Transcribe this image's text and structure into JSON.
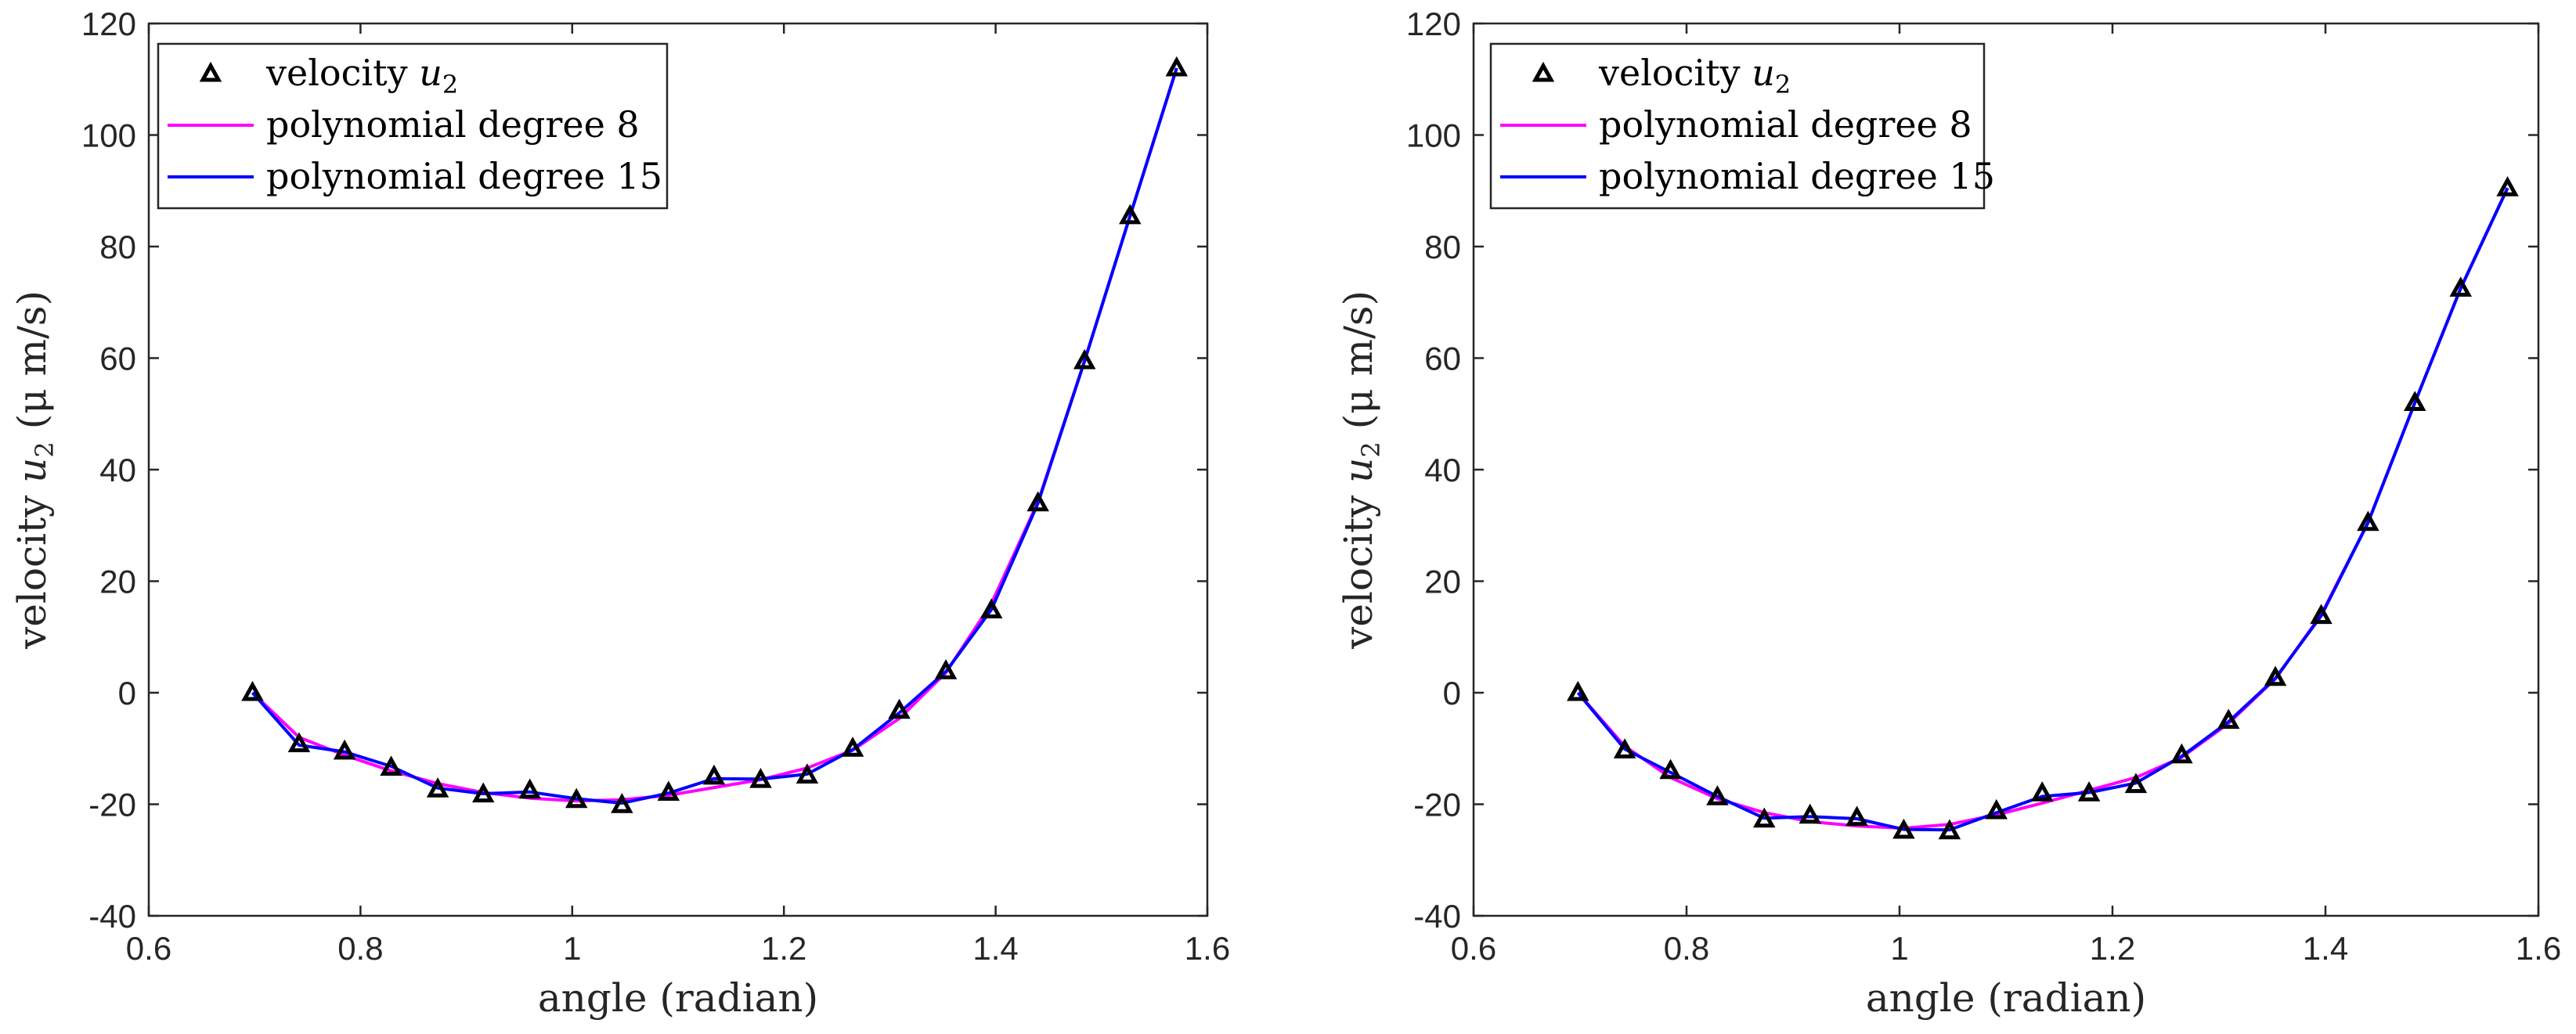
{
  "colors": {
    "markers": "#000000",
    "poly8": "#ff00ff",
    "poly15": "#0000ff",
    "axis": "#262626"
  },
  "chart_data": [
    {
      "type": "line",
      "title": "",
      "xlabel": "angle (radian)",
      "ylabel": {
        "prefix": "velocity ",
        "var": "u",
        "sub": "2",
        "suffix": " (μ m/s)"
      },
      "xlim": [
        0.6,
        1.6
      ],
      "ylim": [
        -40,
        120
      ],
      "xticks": [
        0.6,
        0.8,
        1.0,
        1.2,
        1.4,
        1.6
      ],
      "xtick_labels": [
        "0.6",
        "0.8",
        "1",
        "1.2",
        "1.4",
        "1.6"
      ],
      "yticks": [
        -40,
        -20,
        0,
        20,
        40,
        60,
        80,
        100,
        120
      ],
      "ytick_labels": [
        "-40",
        "-20",
        "0",
        "20",
        "40",
        "60",
        "80",
        "100",
        "120"
      ],
      "legend": {
        "position": "top-left",
        "entries": [
          {
            "key": "markers",
            "prefix": "velocity ",
            "var": "u",
            "sub": "2"
          },
          {
            "key": "poly8",
            "prefix": "polynomial degree 8",
            "var": "",
            "sub": ""
          },
          {
            "key": "poly15",
            "prefix": "polynomial degree 15",
            "var": "",
            "sub": ""
          }
        ]
      },
      "x": [
        0.698,
        0.742,
        0.785,
        0.829,
        0.873,
        0.916,
        0.96,
        1.004,
        1.047,
        1.091,
        1.134,
        1.178,
        1.222,
        1.265,
        1.309,
        1.353,
        1.396,
        1.44,
        1.484,
        1.527,
        1.571
      ],
      "series": [
        {
          "name": "velocity u2",
          "style": "markers",
          "values": [
            0,
            -9.2,
            -10.5,
            -13.4,
            -17.3,
            -18.2,
            -17.5,
            -19.2,
            -20.1,
            -17.9,
            -15.0,
            -15.6,
            -14.8,
            -10.0,
            -3.2,
            3.9,
            14.8,
            34.0,
            59.5,
            85.5,
            112.0
          ]
        },
        {
          "name": "polynomial degree 8",
          "style": "poly8",
          "values": [
            0,
            -8.0,
            -11.2,
            -14.0,
            -16.3,
            -17.9,
            -18.9,
            -19.4,
            -19.2,
            -18.4,
            -17.0,
            -15.6,
            -13.5,
            -10.3,
            -4.6,
            3.6,
            16.0,
            34.2,
            59.5,
            85.5,
            112.0
          ]
        },
        {
          "name": "polynomial degree 15",
          "style": "poly15",
          "values": [
            0,
            -9.4,
            -10.6,
            -13.2,
            -17.1,
            -18.1,
            -17.8,
            -19.0,
            -19.8,
            -18.0,
            -15.4,
            -15.5,
            -14.6,
            -10.2,
            -3.6,
            3.8,
            14.9,
            34.0,
            59.5,
            85.5,
            112.0
          ]
        }
      ]
    },
    {
      "type": "line",
      "title": "",
      "xlabel": "angle (radian)",
      "ylabel": {
        "prefix": "velocity ",
        "var": "u",
        "sub": "2",
        "suffix": " (μ m/s)"
      },
      "xlim": [
        0.6,
        1.6
      ],
      "ylim": [
        -40,
        120
      ],
      "xticks": [
        0.6,
        0.8,
        1.0,
        1.2,
        1.4,
        1.6
      ],
      "xtick_labels": [
        "0.6",
        "0.8",
        "1",
        "1.2",
        "1.4",
        "1.6"
      ],
      "yticks": [
        -40,
        -20,
        0,
        20,
        40,
        60,
        80,
        100,
        120
      ],
      "ytick_labels": [
        "-40",
        "-20",
        "0",
        "20",
        "40",
        "60",
        "80",
        "100",
        "120"
      ],
      "legend": {
        "position": "top-left",
        "entries": [
          {
            "key": "markers",
            "prefix": "velocity ",
            "var": "u",
            "sub": "2"
          },
          {
            "key": "poly8",
            "prefix": "polynomial degree 8",
            "var": "",
            "sub": ""
          },
          {
            "key": "poly15",
            "prefix": "polynomial degree 15",
            "var": "",
            "sub": ""
          }
        ]
      },
      "x": [
        0.698,
        0.742,
        0.785,
        0.829,
        0.873,
        0.916,
        0.96,
        1.004,
        1.047,
        1.091,
        1.134,
        1.178,
        1.222,
        1.265,
        1.309,
        1.353,
        1.396,
        1.44,
        1.484,
        1.527,
        1.571
      ],
      "series": [
        {
          "name": "velocity u2",
          "style": "markers",
          "values": [
            0,
            -10.3,
            -14.0,
            -18.7,
            -22.7,
            -22.0,
            -22.4,
            -24.7,
            -24.8,
            -21.2,
            -18.0,
            -18.0,
            -16.5,
            -11.2,
            -5.0,
            2.7,
            13.8,
            30.5,
            52.0,
            72.5,
            90.5
          ]
        },
        {
          "name": "polynomial degree 8",
          "style": "poly8",
          "values": [
            0,
            -9.6,
            -15.2,
            -19.0,
            -21.5,
            -23.1,
            -23.9,
            -24.3,
            -23.6,
            -21.9,
            -19.8,
            -17.5,
            -15.2,
            -11.6,
            -5.5,
            2.5,
            14.0,
            30.5,
            52.0,
            72.5,
            90.5
          ]
        },
        {
          "name": "polynomial degree 15",
          "style": "poly15",
          "values": [
            0,
            -10.1,
            -14.3,
            -18.6,
            -22.5,
            -22.2,
            -22.6,
            -24.5,
            -24.6,
            -21.5,
            -18.6,
            -17.9,
            -16.2,
            -11.4,
            -5.2,
            2.6,
            13.8,
            30.5,
            52.0,
            72.5,
            90.5
          ]
        }
      ]
    }
  ]
}
